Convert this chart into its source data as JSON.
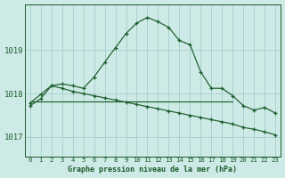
{
  "title": "Graphe pression niveau de la mer (hPa)",
  "bg_color": "#ceeae6",
  "grid_color": "#a0ccca",
  "line_color": "#1a5c2a",
  "x_ticks": [
    0,
    1,
    2,
    3,
    4,
    5,
    6,
    7,
    8,
    9,
    10,
    11,
    12,
    13,
    14,
    15,
    16,
    17,
    18,
    19,
    20,
    21,
    22,
    23
  ],
  "y_ticks": [
    1017,
    1018,
    1019
  ],
  "ylim": [
    1016.55,
    1020.05
  ],
  "xlim": [
    -0.5,
    23.5
  ],
  "series1_x": [
    0,
    1,
    2,
    3,
    4,
    5,
    6,
    7,
    8,
    9,
    10,
    11,
    12,
    13,
    14,
    15,
    16,
    17,
    18,
    19,
    20,
    21,
    22,
    23
  ],
  "series1": [
    1017.72,
    1017.88,
    1018.18,
    1018.22,
    1018.18,
    1018.12,
    1018.38,
    1018.72,
    1019.05,
    1019.38,
    1019.62,
    1019.75,
    1019.65,
    1019.52,
    1019.22,
    1019.12,
    1018.5,
    1018.12,
    1018.12,
    1017.95,
    1017.72,
    1017.62,
    1017.68,
    1017.55
  ],
  "series2_x": [
    0,
    1,
    2,
    3,
    4,
    5,
    6,
    7,
    8,
    9,
    10,
    11,
    12,
    13,
    14,
    15,
    16,
    17,
    18,
    19,
    20,
    21,
    22,
    23
  ],
  "series2": [
    1017.78,
    1017.98,
    1018.18,
    1018.12,
    1018.05,
    1018.0,
    1017.95,
    1017.9,
    1017.85,
    1017.8,
    1017.75,
    1017.7,
    1017.65,
    1017.6,
    1017.55,
    1017.5,
    1017.45,
    1017.4,
    1017.35,
    1017.3,
    1017.22,
    1017.18,
    1017.12,
    1017.05
  ],
  "series3_x": [
    0,
    19
  ],
  "series3": [
    1017.82,
    1017.82
  ],
  "xlabel_fontsize": 6.0,
  "ytick_fontsize": 6.5,
  "xtick_fontsize": 5.2
}
